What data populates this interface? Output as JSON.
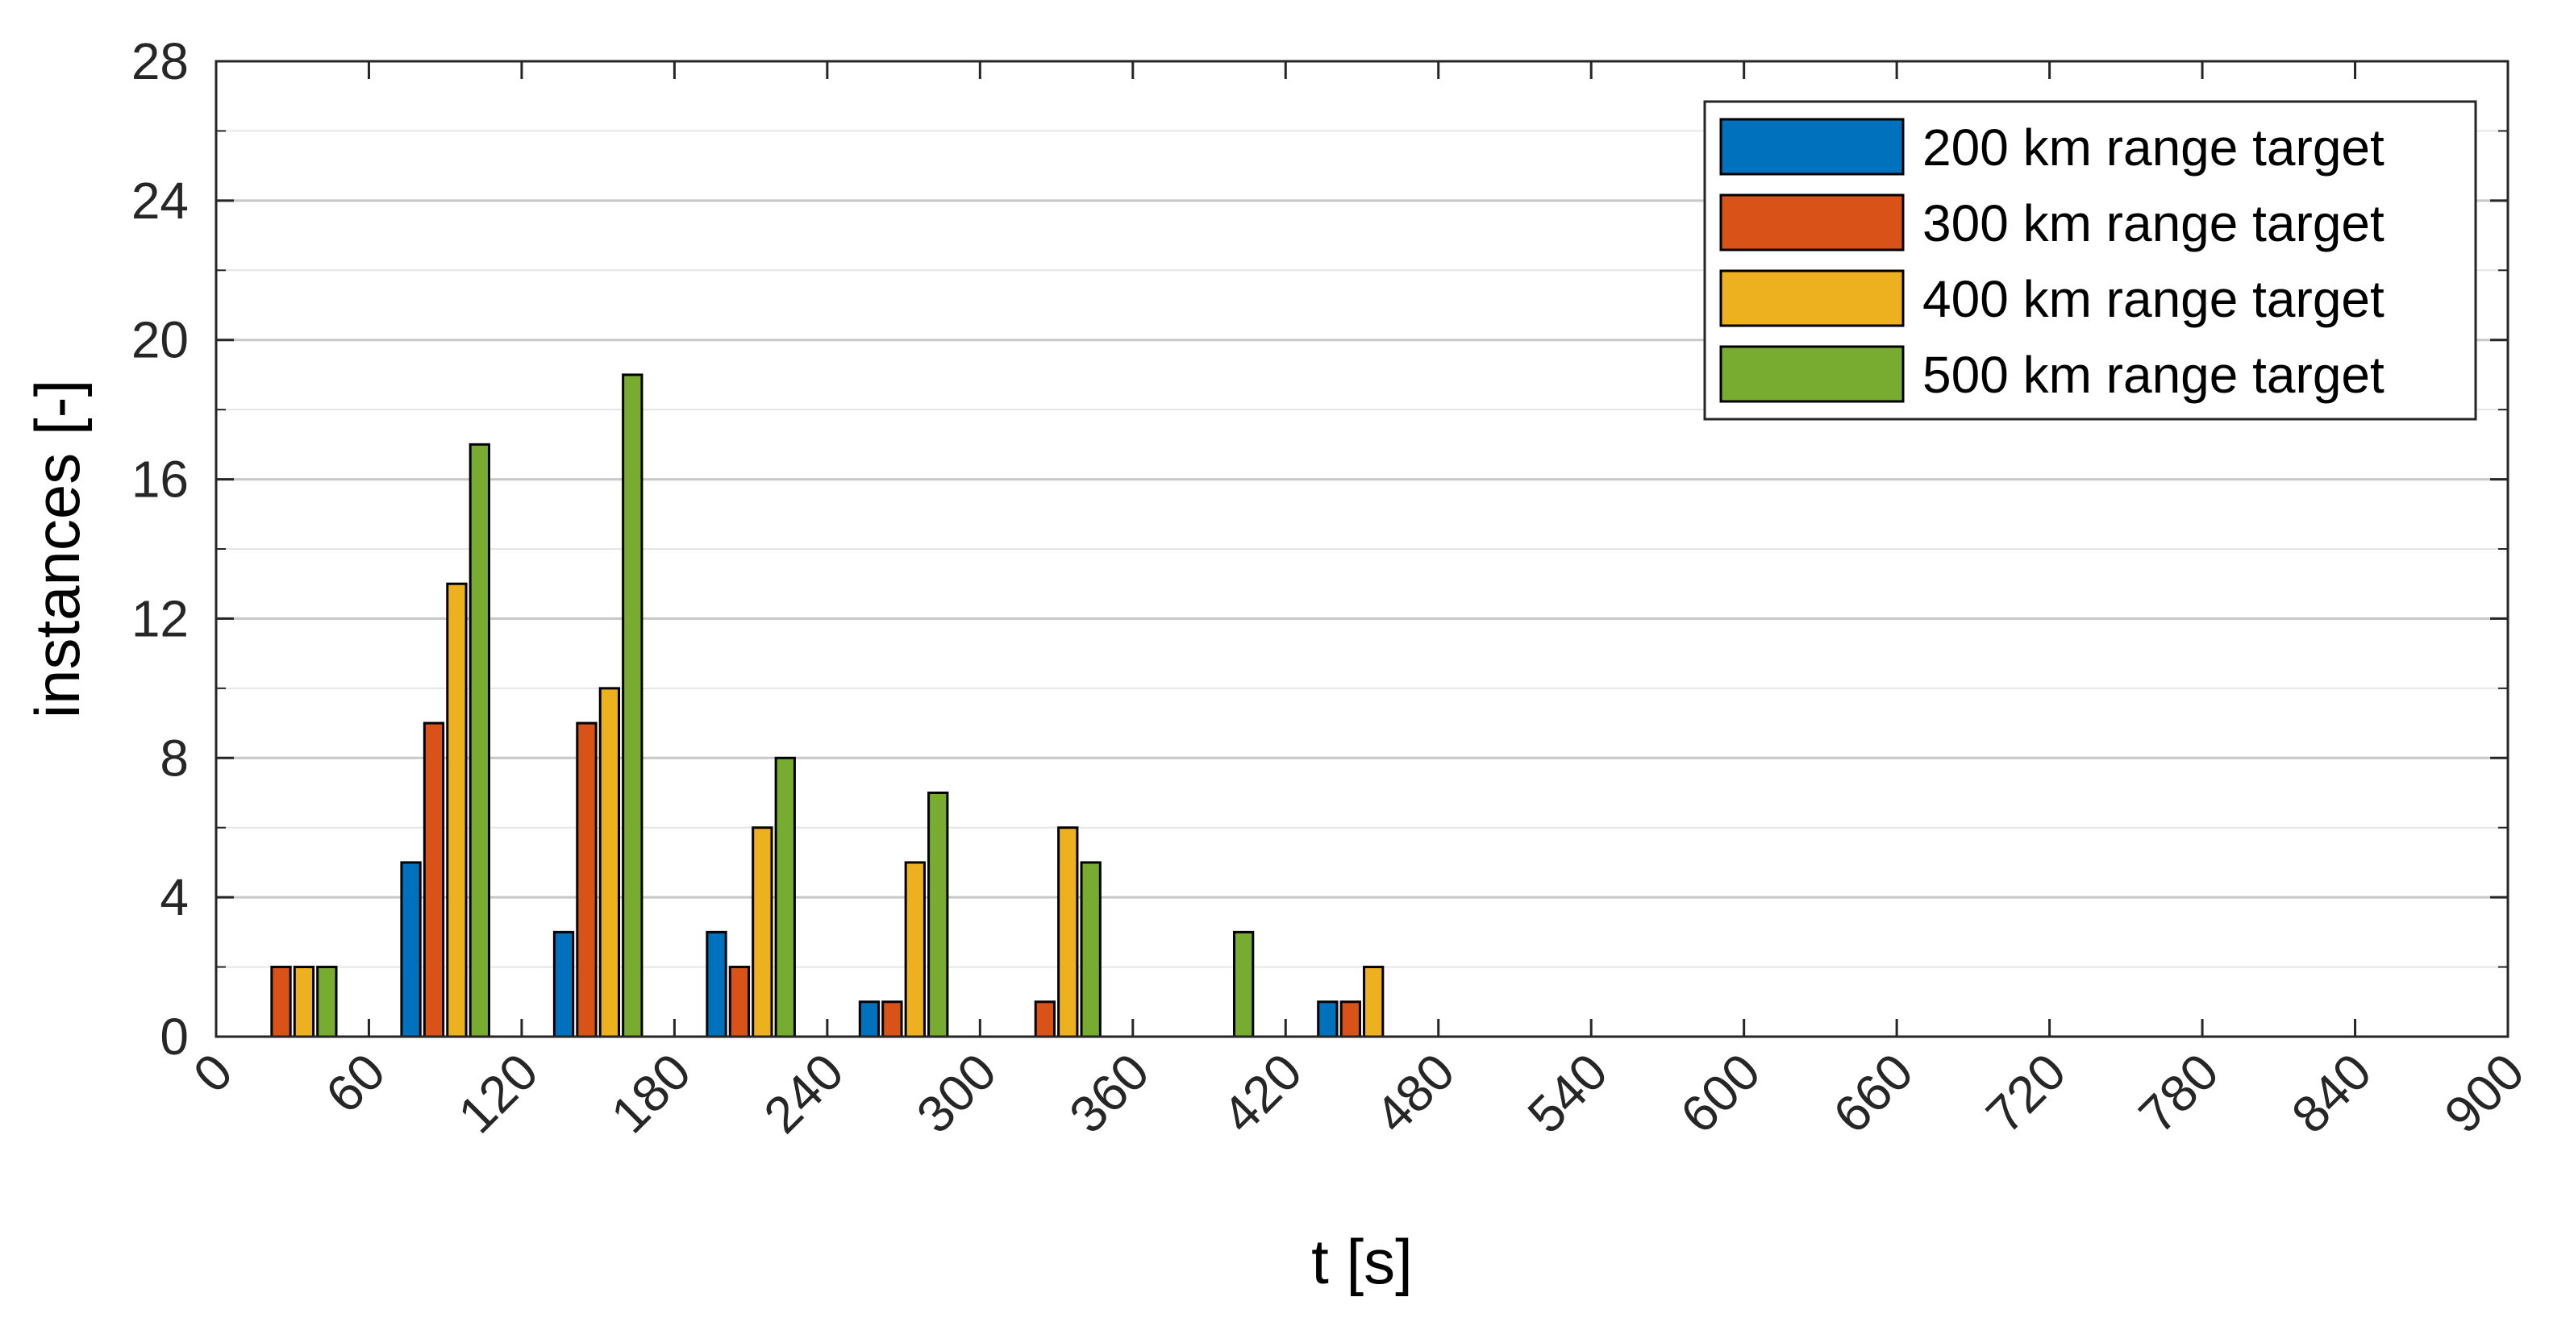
{
  "chart_data": {
    "type": "bar",
    "xlabel": "t [s]",
    "ylabel": "instances [-]",
    "xlim": [
      0,
      900
    ],
    "ylim": [
      0,
      28
    ],
    "xticks": [
      "0",
      "60",
      "120",
      "180",
      "240",
      "300",
      "360",
      "420",
      "480",
      "540",
      "600",
      "660",
      "720",
      "780",
      "840",
      "900"
    ],
    "yticks": [
      "0",
      "4",
      "8",
      "12",
      "16",
      "20",
      "24",
      "28"
    ],
    "grid": true,
    "legend_position": "top-right",
    "bin_width": 60,
    "x": [
      60,
      120,
      180,
      240,
      300,
      360,
      420,
      480,
      540,
      600,
      660,
      720,
      780,
      840,
      900
    ],
    "series": [
      {
        "name": "200 km range target",
        "color": "#0072BD",
        "values": [
          0,
          5,
          3,
          3,
          1,
          0,
          0,
          1,
          0,
          0,
          0,
          0,
          0,
          0,
          0
        ]
      },
      {
        "name": "300 km range target",
        "color": "#D95319",
        "values": [
          2,
          9,
          9,
          2,
          1,
          1,
          0,
          1,
          0,
          0,
          0,
          0,
          0,
          0,
          0
        ]
      },
      {
        "name": "400 km range target",
        "color": "#EDB120",
        "values": [
          2,
          13,
          10,
          6,
          5,
          6,
          0,
          2,
          0,
          0,
          0,
          0,
          0,
          0,
          0
        ]
      },
      {
        "name": "500 km range target",
        "color": "#77AC30",
        "values": [
          2,
          17,
          19,
          8,
          7,
          5,
          3,
          0,
          0,
          0,
          0,
          0,
          0,
          0,
          0
        ]
      }
    ]
  }
}
